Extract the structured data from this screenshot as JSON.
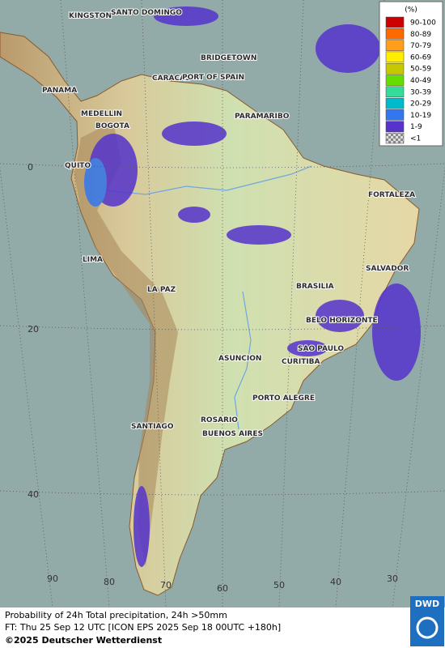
{
  "map": {
    "cities": [
      "KINGSTON",
      "SANTO DOMINGO",
      "BRIDGETOWN",
      "PANAMA",
      "CARACAS",
      "PORT OF SPAIN",
      "MEDELLIN",
      "BOGOTA",
      "PARAMARIBO",
      "QUITO",
      "FORTALEZA",
      "LIMA",
      "SALVADOR",
      "BRASILIA",
      "LA PAZ",
      "BELO HORIZONTE",
      "SAO PAULO",
      "ASUNCION",
      "CURITIBA",
      "PORTO ALEGRE",
      "SANTIAGO",
      "ROSARIO",
      "BUENOS AIRES"
    ],
    "lat_labels": [
      0,
      20,
      40
    ],
    "lon_labels": [
      90,
      80,
      70,
      60,
      50,
      40,
      30
    ]
  },
  "legend": {
    "title": "(%)",
    "entries": [
      {
        "label": "90-100",
        "color": "#cc0000"
      },
      {
        "label": "80-89",
        "color": "#ff6a00"
      },
      {
        "label": "70-79",
        "color": "#ff9f1a"
      },
      {
        "label": "60-69",
        "color": "#ffee00"
      },
      {
        "label": "50-59",
        "color": "#c8c800"
      },
      {
        "label": "40-49",
        "color": "#66dd00"
      },
      {
        "label": "30-39",
        "color": "#33dd99"
      },
      {
        "label": "20-29",
        "color": "#00bbcc"
      },
      {
        "label": "10-19",
        "color": "#3377ee"
      },
      {
        "label": "1-9",
        "color": "#5533cc"
      },
      {
        "label": "<1",
        "color": "checker"
      }
    ]
  },
  "footer": {
    "line1": "Probability of 24h Total precipitation, 24h >50mm",
    "line2": "FT: Thu 25 Sep 12 UTC [ICON EPS 2025 Sep 18 00UTC +180h]",
    "line3": "©2025 Deutscher Wetterdienst",
    "logo": "DWD"
  }
}
